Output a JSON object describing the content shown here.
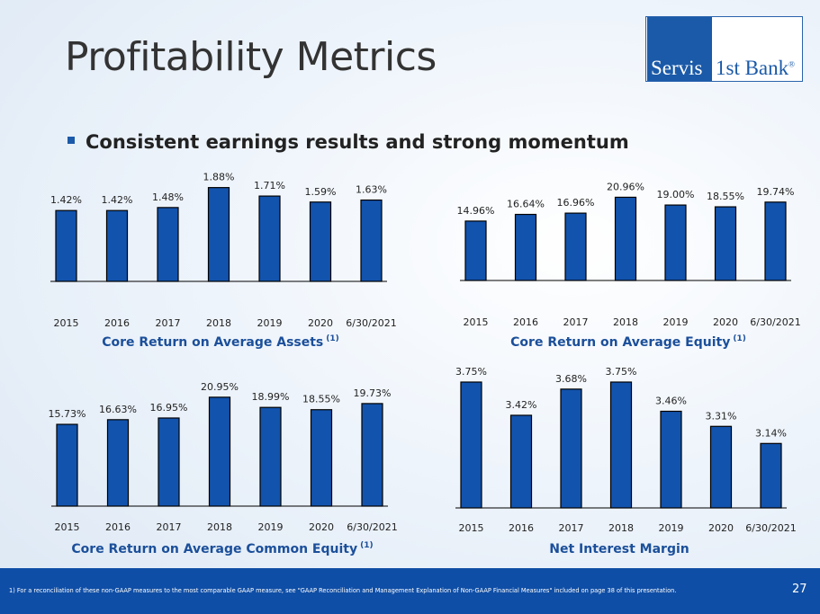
{
  "slide": {
    "title": "Profitability Metrics",
    "bullet": "Consistent earnings results and strong momentum",
    "logo": {
      "part1": "Servis",
      "part2": "1st Bank",
      "mark": "®"
    },
    "footnote": "1)     For a reconciliation of these non-GAAP measures to the most comparable GAAP measure, see \"GAAP Reconciliation and Management Explanation of Non-GAAP Financial Measures\" included on page 38 of this presentation.",
    "page_number": "27"
  },
  "colors": {
    "bar": "#1253ad",
    "title_blue": "#1b4f9a",
    "footer": "#0f4ea6"
  },
  "chart_data": [
    {
      "type": "bar",
      "title": "Core Return on Average Assets",
      "title_sup": "(1)",
      "categories": [
        "2015",
        "2016",
        "2017",
        "2018",
        "2019",
        "2020",
        "6/30/2021"
      ],
      "values": [
        1.42,
        1.42,
        1.48,
        1.88,
        1.71,
        1.59,
        1.63
      ],
      "labels": [
        "1.42%",
        "1.42%",
        "1.48%",
        "1.88%",
        "1.71%",
        "1.59%",
        "1.63%"
      ],
      "ylim": [
        0,
        2.0
      ],
      "unit": "%",
      "grid": false
    },
    {
      "type": "bar",
      "title": "Core Return on Average Equity",
      "title_sup": "(1)",
      "categories": [
        "2015",
        "2016",
        "2017",
        "2018",
        "2019",
        "2020",
        "6/30/2021"
      ],
      "values": [
        14.96,
        16.64,
        16.96,
        20.96,
        19.0,
        18.55,
        19.74
      ],
      "labels": [
        "14.96%",
        "16.64%",
        "16.96%",
        "20.96%",
        "19.00%",
        "18.55%",
        "19.74%"
      ],
      "ylim": [
        0,
        24
      ],
      "unit": "%",
      "grid": false
    },
    {
      "type": "bar",
      "title": "Core Return on Average Common Equity",
      "title_sup": "(1)",
      "categories": [
        "2015",
        "2016",
        "2017",
        "2018",
        "2019",
        "2020",
        "6/30/2021"
      ],
      "values": [
        15.73,
        16.63,
        16.95,
        20.95,
        18.99,
        18.55,
        19.73
      ],
      "labels": [
        "15.73%",
        "16.63%",
        "16.95%",
        "20.95%",
        "18.99%",
        "18.55%",
        "19.73%"
      ],
      "ylim": [
        0,
        23
      ],
      "unit": "%",
      "grid": false
    },
    {
      "type": "bar",
      "title": "Net Interest Margin",
      "title_sup": "",
      "categories": [
        "2015",
        "2016",
        "2017",
        "2018",
        "2019",
        "2020",
        "6/30/2021"
      ],
      "values": [
        3.75,
        3.42,
        3.68,
        3.75,
        3.46,
        3.31,
        3.14
      ],
      "labels": [
        "3.75%",
        "3.42%",
        "3.68%",
        "3.75%",
        "3.46%",
        "3.31%",
        "3.14%"
      ],
      "ylim": [
        2.5,
        3.75
      ],
      "unit": "%",
      "grid": false
    }
  ]
}
